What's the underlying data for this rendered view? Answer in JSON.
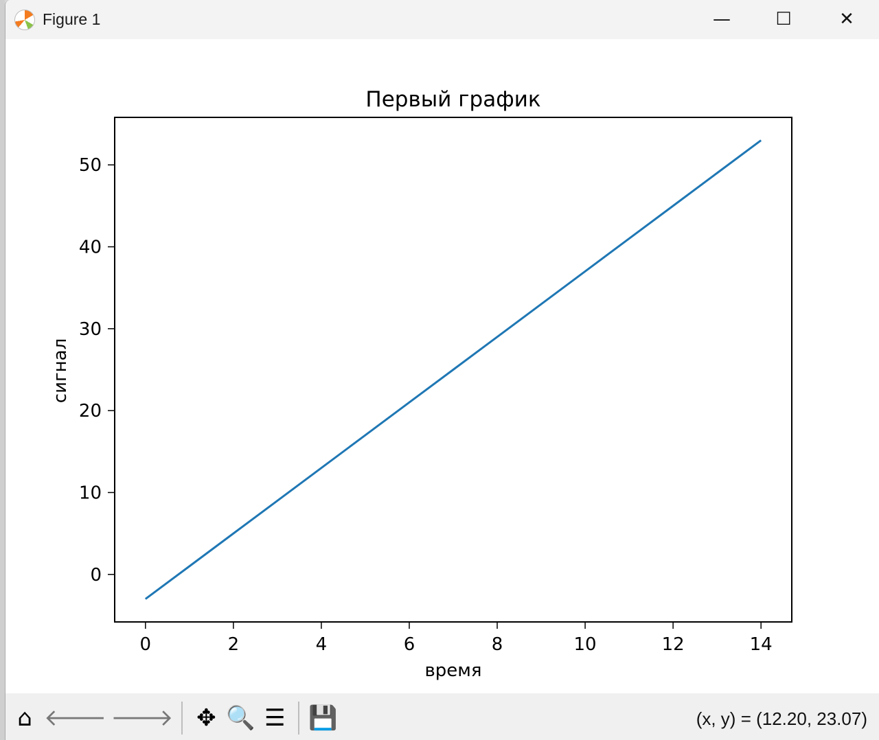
{
  "window": {
    "title": "Figure 1",
    "minimize": "—",
    "maximize": "☐",
    "close": "✕",
    "icon": "matplotlib-logo"
  },
  "toolbar": {
    "buttons": [
      {
        "name": "home-icon",
        "glyph": "⌂"
      },
      {
        "name": "back-arrow-icon",
        "glyph": "🡐"
      },
      {
        "name": "forward-arrow-icon",
        "glyph": "🡒"
      },
      {
        "name": "pan-icon",
        "glyph": "✥"
      },
      {
        "name": "zoom-icon",
        "glyph": "🔍"
      },
      {
        "name": "configure-subplots-icon",
        "glyph": "☰"
      },
      {
        "name": "save-icon",
        "glyph": "💾"
      }
    ],
    "coords": "(x, y) = (12.20, 23.07)"
  },
  "chart_data": {
    "type": "line",
    "title": "Первый график",
    "xlabel": "время",
    "ylabel": "сигнал",
    "xlim": [
      -0.7,
      14.7
    ],
    "ylim": [
      -5.8,
      55.8
    ],
    "xticks": [
      0,
      2,
      4,
      6,
      8,
      10,
      12,
      14
    ],
    "yticks": [
      0,
      10,
      20,
      30,
      40,
      50
    ],
    "grid": false,
    "series": [
      {
        "color": "#1f77b4",
        "x": [
          0,
          1,
          2,
          3,
          4,
          5,
          6,
          7,
          8,
          9,
          10,
          11,
          12,
          13,
          14
        ],
        "y": [
          -3,
          1,
          5,
          9,
          13,
          17,
          21,
          25,
          29,
          33,
          37,
          41,
          45,
          49,
          53
        ]
      }
    ]
  }
}
